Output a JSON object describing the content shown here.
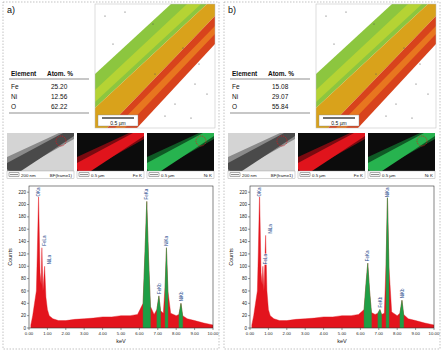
{
  "panels": [
    {
      "label": "a)",
      "table": {
        "header": [
          "Element",
          "Atom. %"
        ],
        "rows": [
          [
            "Fe",
            "25.20"
          ],
          [
            "Ni",
            "12.56"
          ],
          [
            "O",
            "62.22"
          ]
        ]
      },
      "map": {
        "scale_bar": "0.5 µm"
      },
      "images": [
        {
          "scale": "200 nm",
          "label": "BF(frame1)"
        },
        {
          "scale": "0.5 µm",
          "label": "Fe K"
        },
        {
          "scale": "0.5 µm",
          "label": "Ni K"
        }
      ]
    },
    {
      "label": "b)",
      "table": {
        "header": [
          "Element",
          "Atom. %"
        ],
        "rows": [
          [
            "Fe",
            "15.08"
          ],
          [
            "Ni",
            "29.07"
          ],
          [
            "O",
            "55.84"
          ]
        ]
      },
      "map": {
        "scale_bar": "0.5 µm"
      },
      "images": [
        {
          "scale": "200 nm",
          "label": "BF(frame1)"
        },
        {
          "scale": "0.5 µm",
          "label": "Fe K"
        },
        {
          "scale": "0.5 µm",
          "label": "Ni K"
        }
      ]
    }
  ],
  "chart_data": [
    {
      "type": "area",
      "x_label": "keV",
      "y_label": "Counts",
      "x": [
        0.1,
        0.2,
        0.3,
        0.4,
        0.45,
        0.52,
        0.6,
        0.66,
        0.7,
        0.76,
        0.85,
        0.92,
        1.0,
        1.1,
        1.3,
        1.6,
        2.0,
        2.5,
        3.0,
        3.5,
        4.0,
        4.5,
        5.0,
        5.5,
        5.9,
        6.2,
        6.3,
        6.4,
        6.5,
        6.6,
        6.8,
        6.95,
        7.06,
        7.15,
        7.3,
        7.4,
        7.47,
        7.55,
        7.7,
        8.0,
        8.15,
        8.26,
        8.35,
        8.6,
        9.0,
        9.5,
        10.0
      ],
      "series": [
        {
          "color": "#e3141d",
          "values": [
            5,
            20,
            40,
            60,
            120,
            215,
            90,
            70,
            130,
            60,
            100,
            50,
            30,
            20,
            15,
            12,
            12,
            14,
            15,
            16,
            18,
            18,
            20,
            20,
            22,
            40,
            120,
            205,
            110,
            35,
            22,
            30,
            52,
            28,
            24,
            70,
            130,
            60,
            24,
            20,
            22,
            40,
            20,
            15,
            12,
            8,
            5
          ]
        },
        {
          "color": "#1f9e45",
          "values": [
            null,
            null,
            null,
            null,
            null,
            null,
            null,
            null,
            null,
            null,
            null,
            null,
            null,
            null,
            null,
            null,
            null,
            null,
            null,
            null,
            null,
            null,
            null,
            null,
            null,
            40,
            120,
            205,
            110,
            35,
            null,
            30,
            52,
            28,
            null,
            70,
            130,
            60,
            null,
            null,
            22,
            40,
            20,
            null,
            null,
            null,
            null
          ]
        }
      ],
      "xlim": [
        0,
        10
      ],
      "xticks": [
        {
          "value": 0,
          "label": "0.00"
        },
        {
          "value": 1,
          "label": "1.00"
        },
        {
          "value": 2,
          "label": "2.00"
        },
        {
          "value": 3,
          "label": "3.00"
        },
        {
          "value": 4,
          "label": "4.00"
        },
        {
          "value": 5,
          "label": "5.00"
        },
        {
          "value": 6,
          "label": "6.00"
        },
        {
          "value": 7,
          "label": "7.00"
        },
        {
          "value": 8,
          "label": "8.00"
        },
        {
          "value": 9,
          "label": "9.00"
        },
        {
          "value": 10,
          "label": "10.00"
        }
      ],
      "ylim": [
        0,
        230
      ],
      "yticks": [
        0,
        20,
        40,
        60,
        80,
        100,
        120,
        140,
        160,
        180,
        200,
        220
      ],
      "annotations": [
        {
          "text": "OKa",
          "x": 0.52
        },
        {
          "text": "FeLa",
          "x": 0.7
        },
        {
          "text": "NiLa",
          "x": 0.85
        },
        {
          "text": "FeKa",
          "x": 6.4
        },
        {
          "text": "FeKb",
          "x": 7.06
        },
        {
          "text": "NiKa",
          "x": 7.47
        },
        {
          "text": "NiKb",
          "x": 8.26
        }
      ]
    },
    {
      "type": "area",
      "x_label": "keV",
      "y_label": "Counts",
      "x": [
        0.1,
        0.2,
        0.3,
        0.4,
        0.45,
        0.52,
        0.6,
        0.66,
        0.7,
        0.76,
        0.85,
        0.92,
        1.0,
        1.1,
        1.3,
        1.6,
        2.0,
        2.5,
        3.0,
        3.5,
        4.0,
        4.5,
        5.0,
        5.5,
        5.9,
        6.2,
        6.3,
        6.4,
        6.5,
        6.6,
        6.8,
        6.95,
        7.06,
        7.15,
        7.3,
        7.4,
        7.47,
        7.55,
        7.7,
        8.0,
        8.15,
        8.26,
        8.35,
        8.6,
        9.0,
        9.5,
        10.0
      ],
      "series": [
        {
          "color": "#e3141d",
          "values": [
            5,
            20,
            40,
            60,
            120,
            220,
            90,
            70,
            100,
            60,
            150,
            60,
            30,
            20,
            15,
            12,
            12,
            14,
            15,
            16,
            18,
            18,
            20,
            20,
            22,
            30,
            70,
            105,
            60,
            25,
            22,
            24,
            30,
            22,
            24,
            110,
            215,
            100,
            26,
            20,
            24,
            45,
            22,
            15,
            12,
            8,
            5
          ]
        },
        {
          "color": "#1f9e45",
          "values": [
            null,
            null,
            null,
            null,
            null,
            null,
            null,
            null,
            null,
            null,
            null,
            null,
            null,
            null,
            null,
            null,
            null,
            null,
            null,
            null,
            null,
            null,
            null,
            null,
            null,
            30,
            70,
            105,
            60,
            25,
            null,
            24,
            30,
            22,
            null,
            110,
            215,
            100,
            null,
            null,
            24,
            45,
            22,
            null,
            null,
            null,
            null
          ]
        }
      ],
      "xlim": [
        0,
        10
      ],
      "xticks": [
        {
          "value": 0,
          "label": "0.00"
        },
        {
          "value": 1,
          "label": "1.00"
        },
        {
          "value": 2,
          "label": "2.00"
        },
        {
          "value": 3,
          "label": "3.00"
        },
        {
          "value": 4,
          "label": "4.00"
        },
        {
          "value": 5,
          "label": "5.00"
        },
        {
          "value": 6,
          "label": "6.00"
        },
        {
          "value": 7,
          "label": "7.00"
        },
        {
          "value": 8,
          "label": "8.00"
        },
        {
          "value": 9,
          "label": "9.00"
        },
        {
          "value": 10,
          "label": "10.00"
        }
      ],
      "ylim": [
        0,
        230
      ],
      "yticks": [
        0,
        20,
        40,
        60,
        80,
        100,
        120,
        140,
        160,
        180,
        200,
        220
      ],
      "annotations": [
        {
          "text": "OKa",
          "x": 0.52
        },
        {
          "text": "FeLa",
          "x": 0.7
        },
        {
          "text": "NiLa",
          "x": 0.85
        },
        {
          "text": "FeKa",
          "x": 6.4
        },
        {
          "text": "FeKb",
          "x": 7.06
        },
        {
          "text": "NiKa",
          "x": 7.47
        },
        {
          "text": "NiKb",
          "x": 8.26
        }
      ]
    }
  ]
}
